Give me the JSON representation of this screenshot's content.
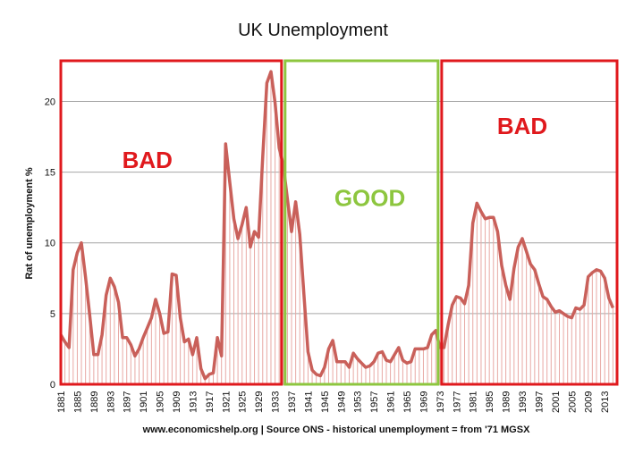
{
  "chart_data": {
    "type": "area",
    "title": "UK Unemployment",
    "ylabel": "Rat of unemployment %",
    "xlabel": "",
    "source": "www.economicshelp.org | Source ONS - historical unemployment = from '71 MGSX",
    "ylim": [
      0,
      23
    ],
    "xlim": [
      1881,
      2016
    ],
    "yticks": [
      0,
      5,
      10,
      15,
      20
    ],
    "xtick_labels": [
      "1881",
      "1885",
      "1889",
      "1893",
      "1897",
      "1901",
      "1905",
      "1909",
      "1913",
      "1917",
      "1921",
      "1925",
      "1929",
      "1933",
      "1937",
      "1941",
      "1945",
      "1949",
      "1953",
      "1957",
      "1961",
      "1965",
      "1969",
      "1973",
      "1977",
      "1981",
      "1985",
      "1989",
      "1993",
      "1997",
      "2001",
      "2005",
      "2009",
      "2013"
    ],
    "grid": "horizontal",
    "colors": {
      "line": "#c9605a",
      "fill_lines": "#e8a9a5",
      "bad": "#e0191d",
      "good": "#8dc63f",
      "grid": "#a6a6a6"
    },
    "series": [
      {
        "x": [
          1881,
          1882,
          1883,
          1884,
          1885,
          1886,
          1887,
          1888,
          1889,
          1890,
          1891,
          1892,
          1893,
          1894,
          1895,
          1896,
          1897,
          1898,
          1899,
          1900,
          1901,
          1902,
          1903,
          1904,
          1905,
          1906,
          1907,
          1908,
          1909,
          1910,
          1911,
          1912,
          1913,
          1914,
          1915,
          1916,
          1917,
          1918,
          1919,
          1920,
          1921,
          1922,
          1923,
          1924,
          1925,
          1926,
          1927,
          1928,
          1929,
          1930,
          1931,
          1932,
          1933,
          1934,
          1935,
          1936,
          1937,
          1938,
          1939,
          1940,
          1941,
          1942,
          1943,
          1944,
          1945,
          1946,
          1947,
          1948,
          1949,
          1950,
          1951,
          1952,
          1953,
          1954,
          1955,
          1956,
          1957,
          1958,
          1959,
          1960,
          1961,
          1962,
          1963,
          1964,
          1965,
          1966,
          1967,
          1968,
          1969,
          1970,
          1971,
          1972,
          1973,
          1974,
          1975,
          1976,
          1977,
          1978,
          1979,
          1980,
          1981,
          1982,
          1983,
          1984,
          1985,
          1986,
          1987,
          1988,
          1989,
          1990,
          1991,
          1992,
          1993,
          1994,
          1995,
          1996,
          1997,
          1998,
          1999,
          2000,
          2001,
          2002,
          2003,
          2004,
          2005,
          2006,
          2007,
          2008,
          2009,
          2010,
          2011,
          2012,
          2013,
          2014,
          2015
        ],
        "values": [
          3.5,
          3.0,
          2.6,
          8.1,
          9.3,
          10.0,
          7.6,
          4.9,
          2.1,
          2.1,
          3.5,
          6.3,
          7.5,
          6.9,
          5.8,
          3.3,
          3.3,
          2.8,
          2.0,
          2.5,
          3.3,
          4.0,
          4.7,
          6.0,
          5.0,
          3.6,
          3.7,
          7.8,
          7.7,
          4.7,
          3.0,
          3.2,
          2.1,
          3.3,
          1.1,
          0.4,
          0.7,
          0.8,
          3.3,
          2.0,
          17.0,
          14.3,
          11.7,
          10.3,
          11.3,
          12.5,
          9.7,
          10.8,
          10.4,
          16.1,
          21.3,
          22.1,
          19.9,
          16.7,
          15.5,
          13.1,
          10.8,
          12.9,
          10.6,
          6.4,
          2.3,
          1.0,
          0.7,
          0.6,
          1.2,
          2.5,
          3.1,
          1.6,
          1.6,
          1.6,
          1.2,
          2.2,
          1.8,
          1.5,
          1.2,
          1.3,
          1.6,
          2.2,
          2.3,
          1.7,
          1.6,
          2.1,
          2.6,
          1.7,
          1.5,
          1.6,
          2.5,
          2.5,
          2.5,
          2.6,
          3.5,
          3.8,
          2.6,
          2.6,
          4.2,
          5.6,
          6.2,
          6.1,
          5.7,
          7.0,
          11.4,
          12.8,
          12.2,
          11.7,
          11.8,
          11.8,
          10.8,
          8.4,
          7.0,
          6.0,
          8.2,
          9.7,
          10.3,
          9.4,
          8.5,
          8.1,
          7.1,
          6.2,
          6.0,
          5.5,
          5.1,
          5.2,
          5.0,
          4.8,
          4.7,
          5.4,
          5.3,
          5.6,
          7.6,
          7.9,
          8.1,
          8.0,
          7.5,
          6.1,
          5.4
        ]
      }
    ],
    "annotations": [
      {
        "label": "BAD",
        "range": [
          1881,
          1935
        ]
      },
      {
        "label": "GOOD",
        "range": [
          1935,
          1973
        ]
      },
      {
        "label": "BAD",
        "range": [
          1973,
          2016
        ]
      }
    ]
  }
}
